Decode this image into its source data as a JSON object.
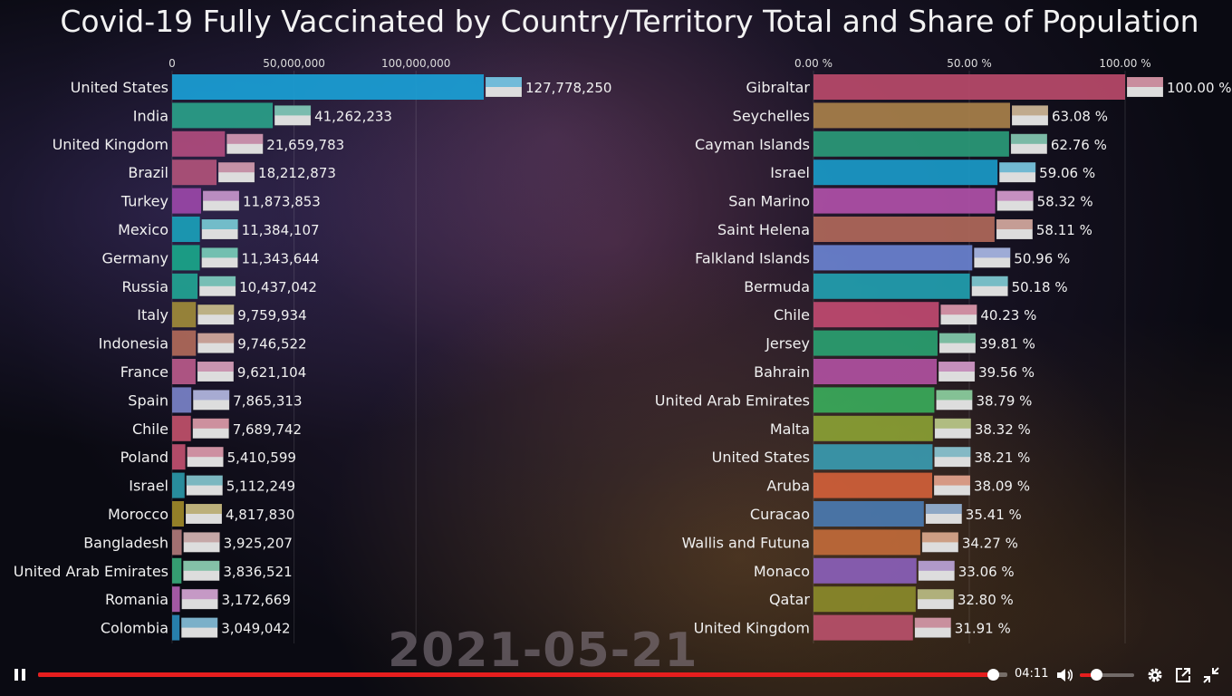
{
  "title": "Covid-19 Fully Vaccinated by Country/Territory Total and Share of Population",
  "date": "2021-05-21",
  "chart_data": [
    {
      "type": "bar",
      "orientation": "horizontal",
      "ticks": [
        "0",
        "50,000,000",
        "100,000,000"
      ],
      "tick_values": [
        0,
        50000000,
        100000000
      ],
      "xlim": [
        0,
        127778250
      ],
      "categories": [
        "United States",
        "India",
        "United Kingdom",
        "Brazil",
        "Turkey",
        "Mexico",
        "Germany",
        "Russia",
        "Italy",
        "Indonesia",
        "France",
        "Spain",
        "Chile",
        "Poland",
        "Israel",
        "Morocco",
        "Bangladesh",
        "United Arab Emirates",
        "Romania",
        "Colombia"
      ],
      "values": [
        127778250,
        41262233,
        21659783,
        18212873,
        11873853,
        11384107,
        11343644,
        10437042,
        9759934,
        9746522,
        9621104,
        7865313,
        7689742,
        5410599,
        5112249,
        4817830,
        3925207,
        3836521,
        3172669,
        3049042
      ],
      "value_labels": [
        "127,778,250",
        "41,262,233",
        "21,659,783",
        "18,212,873",
        "11,873,853",
        "11,384,107",
        "11,343,644",
        "10,437,042",
        "9,759,934",
        "9,746,522",
        "9,621,104",
        "7,865,313",
        "7,689,742",
        "5,410,599",
        "5,112,249",
        "4,817,830",
        "3,925,207",
        "3,836,521",
        "3,172,669",
        "3,049,042"
      ],
      "colors": [
        "#1a9fd6",
        "#2aa089",
        "#b04c7e",
        "#b0537a",
        "#9a48a8",
        "#1aa0b8",
        "#1aa68a",
        "#22a494",
        "#a08a3a",
        "#b06a5a",
        "#b85a8a",
        "#7a82c8",
        "#c0506a",
        "#c05070",
        "#2a98a8",
        "#a08a2a",
        "#b07a7a",
        "#3aaa7a",
        "#b060b0",
        "#2a8ab8"
      ]
    },
    {
      "type": "bar",
      "orientation": "horizontal",
      "ticks": [
        "0.00 %",
        "50.00 %",
        "100.00 %"
      ],
      "tick_values": [
        0,
        50,
        100
      ],
      "xlim": [
        0,
        100
      ],
      "categories": [
        "Gibraltar",
        "Seychelles",
        "Cayman Islands",
        "Israel",
        "San Marino",
        "Saint Helena",
        "Falkland Islands",
        "Bermuda",
        "Chile",
        "Jersey",
        "Bahrain",
        "United Arab Emirates",
        "Malta",
        "United States",
        "Aruba",
        "Curacao",
        "Wallis and Futuna",
        "Monaco",
        "Qatar",
        "United Kingdom"
      ],
      "values": [
        100.0,
        63.08,
        62.76,
        59.06,
        58.32,
        58.11,
        50.96,
        50.18,
        40.23,
        39.81,
        39.56,
        38.79,
        38.32,
        38.21,
        38.09,
        35.41,
        34.27,
        33.06,
        32.8,
        31.91
      ],
      "value_labels": [
        "100.00 %",
        "63.08 %",
        "62.76 %",
        "59.06 %",
        "58.32 %",
        "58.11 %",
        "50.96 %",
        "50.18 %",
        "40.23 %",
        "39.81 %",
        "39.56 %",
        "38.79 %",
        "38.32 %",
        "38.21 %",
        "38.09 %",
        "35.41 %",
        "34.27 %",
        "33.06 %",
        "32.80 %",
        "31.91 %"
      ],
      "colors": [
        "#b84a6a",
        "#a8804a",
        "#2a9a78",
        "#1a9ac8",
        "#b050a8",
        "#b0685a",
        "#6a82d0",
        "#22a0b0",
        "#c04a70",
        "#2aa070",
        "#b050a0",
        "#3aaa5a",
        "#8aa034",
        "#3a9ab0",
        "#d0603a",
        "#4a7ab0",
        "#c06a3a",
        "#8a60b8",
        "#8a8a2a",
        "#b8506a"
      ]
    }
  ],
  "player": {
    "time": "04:11",
    "progress": 0.985,
    "volume": 0.3
  }
}
